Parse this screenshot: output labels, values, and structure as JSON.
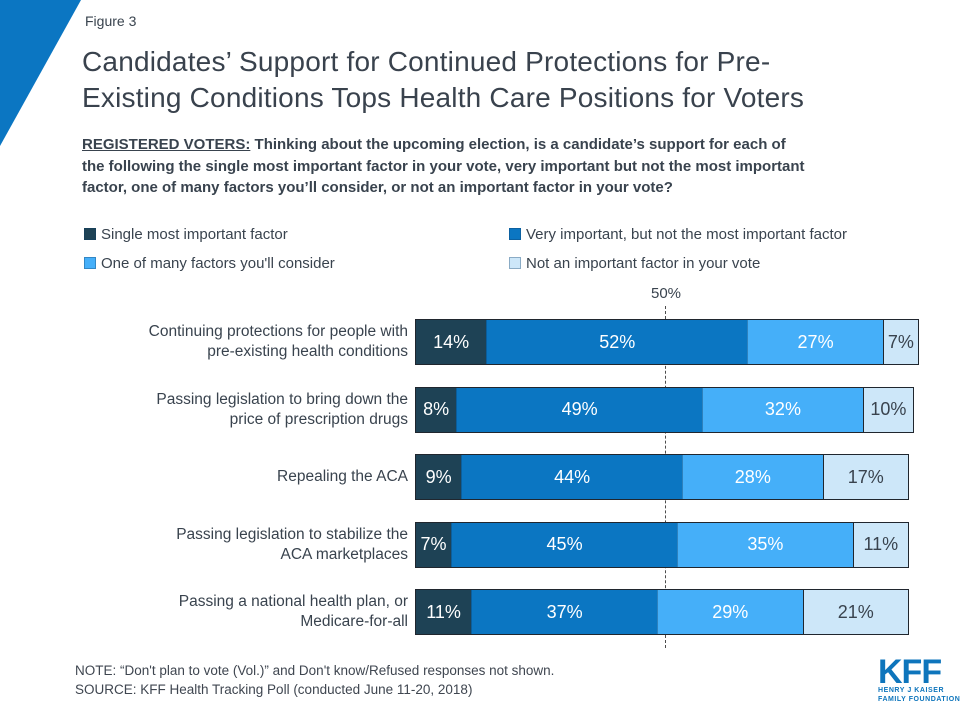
{
  "figure_label": "Figure 3",
  "title": {
    "line1": "Candidates’ Support for Continued Protections for Pre-",
    "line2": "Existing Conditions Tops Health Care Positions for Voters"
  },
  "subtitle": {
    "label": "REGISTERED VOTERS:",
    "line1_rest": "Thinking about the upcoming election, is a candidate’s support for each of",
    "line2": "the following the single most important factor in your vote, very important but not the most important",
    "line3": "factor, one of many factors you’ll consider, or not an important factor in your vote?"
  },
  "chart_data": {
    "type": "bar",
    "orientation": "horizontal",
    "stacked": true,
    "title": "Candidates’ Support for Continued Protections for Pre-Existing Conditions Tops Health Care Positions for Voters",
    "xlabel": "",
    "ylabel": "",
    "xlim": [
      0,
      100
    ],
    "value_suffix": "%",
    "grid": "off",
    "gridline": {
      "value": 50,
      "label": "50%",
      "style": "dashed"
    },
    "legend_position": "top",
    "categories": [
      "Continuing protections for people with pre-existing health conditions",
      "Passing legislation to bring down the price of prescription drugs",
      "Repealing the ACA",
      "Passing legislation to stabilize the ACA marketplaces",
      "Passing a national health plan, or Medicare-for-all"
    ],
    "category_label_lines": [
      [
        "Continuing protections for people with",
        "pre-existing health conditions"
      ],
      [
        "Passing legislation to bring down the",
        "price of prescription drugs"
      ],
      [
        "Repealing the ACA"
      ],
      [
        "Passing legislation to stabilize the",
        "ACA marketplaces"
      ],
      [
        "Passing a national health plan, or",
        "Medicare-for-all"
      ]
    ],
    "series": [
      {
        "name": "Single most important factor",
        "color": "#1e4255",
        "label_color": "#ffffff",
        "values": [
          14,
          8,
          9,
          7,
          11
        ]
      },
      {
        "name": "Very important, but not the most important factor",
        "color": "#0b76c2",
        "label_color": "#ffffff",
        "values": [
          52,
          49,
          44,
          45,
          37
        ]
      },
      {
        "name": "One of many factors you'll consider",
        "color": "#45aff9",
        "label_color": "#ffffff",
        "values": [
          27,
          32,
          28,
          35,
          29
        ]
      },
      {
        "name": "Not an important factor in your vote",
        "color": "#cde7f9",
        "label_color": "#39434e",
        "values": [
          7,
          10,
          17,
          11,
          21
        ]
      }
    ]
  },
  "footer": {
    "note": "NOTE: “Don't plan to vote (Vol.)” and Don't know/Refused responses not shown.",
    "source": "SOURCE: KFF Health Tracking Poll (conducted June 11-20, 2018)"
  },
  "logo": {
    "text": "KFF",
    "tagline_line1": "HENRY J KAISER",
    "tagline_line2": "FAMILY FOUNDATION"
  },
  "colors": {
    "accent_blue": "#0b76c2",
    "text_dark": "#39434e",
    "kff_blue": "#0e75bc",
    "gridline": "#4d4d4d",
    "bar_border": "#20262e"
  }
}
